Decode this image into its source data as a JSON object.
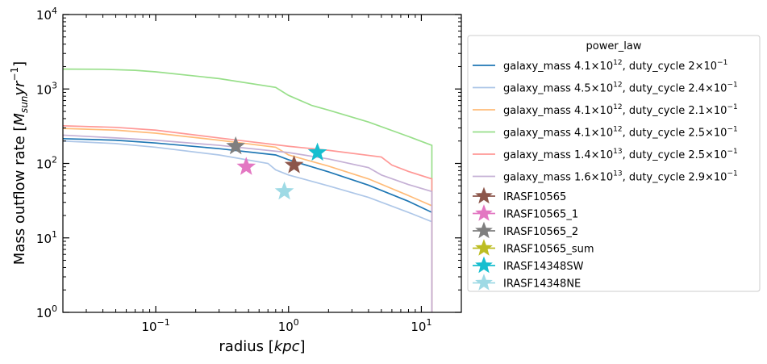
{
  "chart_data": {
    "type": "line",
    "xscale": "log",
    "yscale": "log",
    "xlim": [
      0.02,
      20
    ],
    "ylim": [
      1,
      10000
    ],
    "xlabel_main": "radius [",
    "xlabel_unit": "kpc",
    "xlabel_end": "]",
    "ylabel_main": "Mass outflow rate [",
    "ylabel_unit": "M",
    "ylabel_sub": "sun",
    "ylabel_unit2": "yr",
    "ylabel_exp": "−1",
    "ylabel_end": "]",
    "x_ticks": [
      {
        "value": 0.1,
        "base": "10",
        "exp": "−1"
      },
      {
        "value": 1,
        "base": "10",
        "exp": "0"
      },
      {
        "value": 10,
        "base": "10",
        "exp": "1"
      }
    ],
    "y_ticks": [
      {
        "value": 1,
        "base": "10",
        "exp": "0"
      },
      {
        "value": 10,
        "base": "10",
        "exp": "1"
      },
      {
        "value": 100,
        "base": "10",
        "exp": "2"
      },
      {
        "value": 1000,
        "base": "10",
        "exp": "3"
      },
      {
        "value": 10000,
        "base": "10",
        "exp": "4"
      }
    ],
    "legend_title": "power_law",
    "legend_placement": "outside right",
    "series": [
      {
        "name": "galaxy_mass 4.1×10^12, duty_cycle 2×10^−1",
        "label_parts": {
          "a": "galaxy_mass 4.1×10",
          "a_exp": "12",
          "b": ", duty_cycle 2×10",
          "b_exp": "−1"
        },
        "color": "#1f77b4",
        "points": [
          [
            0.02,
            215
          ],
          [
            0.05,
            205
          ],
          [
            0.1,
            188
          ],
          [
            0.3,
            158
          ],
          [
            0.8,
            130
          ],
          [
            1.0,
            112
          ],
          [
            2.0,
            77
          ],
          [
            4.0,
            51
          ],
          [
            8.0,
            31
          ],
          [
            12.0,
            22
          ],
          [
            12.0,
            1
          ]
        ]
      },
      {
        "name": "galaxy_mass 4.5×10^12, duty_cycle 2.4×10^−1",
        "label_parts": {
          "a": "galaxy_mass 4.5×10",
          "a_exp": "12",
          "b": ", duty_cycle 2.4×10",
          "b_exp": "−1"
        },
        "color": "#aec7e8",
        "points": [
          [
            0.02,
            200
          ],
          [
            0.05,
            185
          ],
          [
            0.1,
            165
          ],
          [
            0.3,
            130
          ],
          [
            0.7,
            100
          ],
          [
            0.8,
            82
          ],
          [
            1.0,
            70
          ],
          [
            2.0,
            50
          ],
          [
            4.0,
            35
          ],
          [
            8.0,
            22
          ],
          [
            12.0,
            16.5
          ],
          [
            12.0,
            1
          ]
        ]
      },
      {
        "name": "galaxy_mass 4.1×10^12, duty_cycle 2.1×10^−1",
        "label_parts": {
          "a": "galaxy_mass 4.1×10",
          "a_exp": "12",
          "b": ", duty_cycle 2.1×10",
          "b_exp": "−1"
        },
        "color": "#ffbb78",
        "points": [
          [
            0.02,
            295
          ],
          [
            0.05,
            280
          ],
          [
            0.1,
            255
          ],
          [
            0.3,
            205
          ],
          [
            0.8,
            165
          ],
          [
            1.0,
            130
          ],
          [
            2.0,
            92
          ],
          [
            4.0,
            62
          ],
          [
            8.0,
            37
          ],
          [
            12.0,
            27
          ],
          [
            12.0,
            1
          ]
        ]
      },
      {
        "name": "galaxy_mass 4.1×10^12, duty_cycle 2.5×10^−1",
        "label_parts": {
          "a": "galaxy_mass 4.1×10",
          "a_exp": "12",
          "b": ", duty_cycle 2.5×10",
          "b_exp": "−1"
        },
        "color": "#98df8a",
        "points": [
          [
            0.02,
            1850
          ],
          [
            0.04,
            1840
          ],
          [
            0.07,
            1780
          ],
          [
            0.1,
            1700
          ],
          [
            0.3,
            1380
          ],
          [
            0.8,
            1050
          ],
          [
            1.0,
            820
          ],
          [
            1.5,
            600
          ],
          [
            2.0,
            520
          ],
          [
            4.0,
            360
          ],
          [
            8.0,
            230
          ],
          [
            12.0,
            175
          ],
          [
            12.0,
            1
          ]
        ]
      },
      {
        "name": "galaxy_mass 1.4×10^13, duty_cycle 2.5×10^−1",
        "label_parts": {
          "a": "galaxy_mass 1.4×10",
          "a_exp": "13",
          "b": ", duty_cycle 2.5×10",
          "b_exp": "−1"
        },
        "color": "#ff9896",
        "points": [
          [
            0.02,
            320
          ],
          [
            0.05,
            305
          ],
          [
            0.1,
            280
          ],
          [
            0.3,
            220
          ],
          [
            1.0,
            170
          ],
          [
            2.0,
            150
          ],
          [
            5.0,
            122
          ],
          [
            6.0,
            95
          ],
          [
            8.0,
            78
          ],
          [
            12.0,
            62
          ],
          [
            12.0,
            1
          ]
        ]
      },
      {
        "name": "galaxy_mass 1.6×10^13, duty_cycle 2.9×10^−1",
        "label_parts": {
          "a": "galaxy_mass 1.6×10",
          "a_exp": "13",
          "b": ", duty_cycle 2.9×10",
          "b_exp": "−1"
        },
        "color": "#c5b0d5",
        "points": [
          [
            0.02,
            240
          ],
          [
            0.05,
            220
          ],
          [
            0.1,
            205
          ],
          [
            0.3,
            175
          ],
          [
            1.0,
            140
          ],
          [
            2.0,
            115
          ],
          [
            4.0,
            88
          ],
          [
            5.0,
            70
          ],
          [
            8.0,
            52
          ],
          [
            12.0,
            42
          ],
          [
            12.0,
            1
          ]
        ]
      }
    ],
    "markers": [
      {
        "name": "IRASF10565",
        "color": "#8c564b",
        "x": 1.1,
        "y": 95
      },
      {
        "name": "IRASF10565_1",
        "color": "#e377c2",
        "x": 0.48,
        "y": 90
      },
      {
        "name": "IRASF10565_2",
        "color": "#7f7f7f",
        "x": 0.4,
        "y": 170
      },
      {
        "name": "IRASF10565_sum",
        "color": "#bcbd22",
        "x": null,
        "y": null
      },
      {
        "name": "IRASF14348SW",
        "color": "#17becf",
        "x": 1.65,
        "y": 140
      },
      {
        "name": "IRASF14348NE",
        "color": "#9edae5",
        "x": 0.93,
        "y": 42
      }
    ]
  }
}
